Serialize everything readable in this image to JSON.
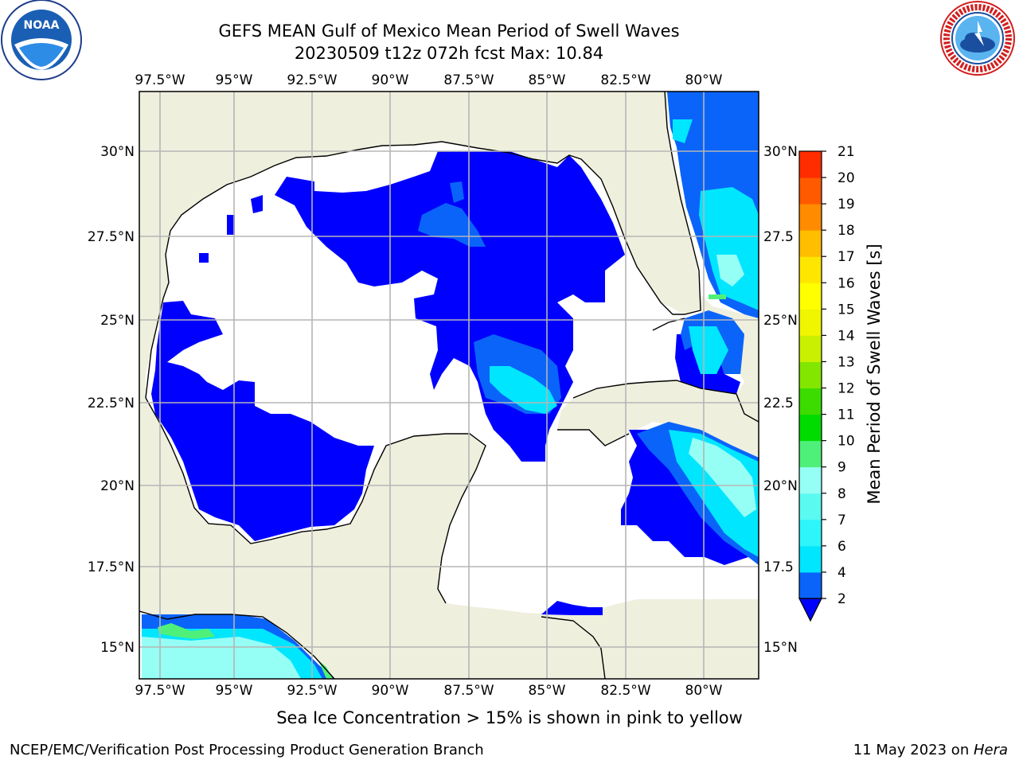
{
  "header": {
    "title_line1": "GEFS MEAN Gulf of Mexico Mean Period of Swell Waves",
    "title_line2": "20230509 t12z 072h fcst   Max: 10.84"
  },
  "logos": {
    "left": "noaa-logo",
    "right": "national-weather-service-logo"
  },
  "map": {
    "lon_labels": [
      "97.5°W",
      "95°W",
      "92.5°W",
      "90°W",
      "87.5°W",
      "85°W",
      "82.5°W",
      "80°W"
    ],
    "lat_labels_left": [
      "30°N",
      "27.5°N",
      "25°N",
      "22.5°N",
      "20°N",
      "17.5°N",
      "15°N"
    ],
    "lat_labels_right": [
      "30°N",
      "27.5",
      "25°N",
      "22.5",
      "20°N",
      "17.5",
      "15°N"
    ],
    "colors": {
      "land": "#efefde",
      "water_low": "#ffffff",
      "grid": "#b5b5b5"
    }
  },
  "colorbar": {
    "label": "Mean Period of Swell Waves [s]",
    "ticks": [
      "2",
      "4",
      "6",
      "7",
      "8",
      "9",
      "10",
      "11",
      "12",
      "13",
      "14",
      "15",
      "16",
      "17",
      "18",
      "19",
      "20",
      "21"
    ],
    "colors": [
      "#0a64fa",
      "#00e6ff",
      "#2df5fa",
      "#5afaf0",
      "#96fff5",
      "#4ff07a",
      "#00dc00",
      "#3cdc00",
      "#82e600",
      "#c8f000",
      "#f0f500",
      "#ffff00",
      "#ffe600",
      "#ffbe00",
      "#ff8c00",
      "#ff5a00",
      "#ff2d00",
      "#ff0000"
    ],
    "extend_color": "#0000ff"
  },
  "caption": "Sea Ice Concentration > 15% is shown in pink to yellow",
  "footer": {
    "left": "NCEP/EMC/Verification Post Processing Product Generation Branch",
    "date": "11 May 2023 on ",
    "machine": "Hera"
  }
}
